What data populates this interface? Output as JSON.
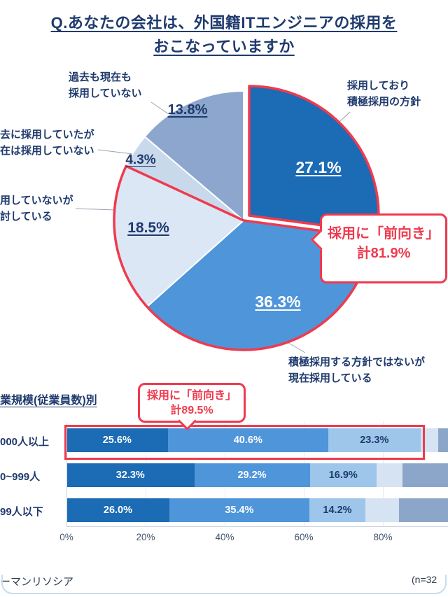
{
  "page": {
    "title_line1": "Q.あなたの会社は、外国籍ITエンジニアの採用を",
    "title_line2": "おこなっていますか",
    "footer_left": "ーマンリソシア",
    "footer_right": "(n=32"
  },
  "colors": {
    "navy": "#1f3a6d",
    "red": "#ef3a4e",
    "grid": "#e6ecf4"
  },
  "labels": {
    "pie_pcts": [
      "27.1%",
      "36.3%",
      "18.5%",
      "4.3%",
      "13.8%"
    ],
    "right_l1": "採用しており",
    "right_l2": "積極採用の方針",
    "topleft_l1": "過去も現在も",
    "topleft_l2": "採用していない",
    "left_l1": "去に採用していたが",
    "left_l2": "在は採用していない",
    "lowleft_l1": "用していないが",
    "lowleft_l2": "討している",
    "bottom_l1": "積極採用する方針ではないが",
    "bottom_l2": "現在採用している"
  },
  "callout_pie": {
    "line1": "採用に「前向き」",
    "line2": "計81.9%"
  },
  "callout_bar": {
    "line1": "採用に「前向き」",
    "line2": "計89.5%"
  },
  "bar_section": {
    "heading": "業規模(従業員数)別"
  },
  "chart_data": [
    {
      "type": "pie",
      "title": "Q.あなたの会社は、外国籍ITエンジニアの採用をおこなっていますか",
      "labels": [
        "採用しており積極採用の方針",
        "積極採用する方針ではないが現在採用している",
        "用していないが討している",
        "去に採用していたが在は採用していない",
        "過去も現在も採用していない"
      ],
      "values": [
        27.1,
        36.3,
        18.5,
        4.3,
        13.8
      ],
      "colors": [
        "#1b6bb5",
        "#4e95da",
        "#dbe7f5",
        "#c9d9ec",
        "#8ca6cd"
      ],
      "start_angle": "top",
      "direction": "clockwise",
      "annotation": "採用に「前向き」計81.9%"
    },
    {
      "type": "bar",
      "stacked": true,
      "subtitle": "業規模(従業員数)別",
      "categories": [
        "000人以上",
        "0~999人",
        "99人以下"
      ],
      "rows": [
        {
          "category": "000人以上",
          "values": [
            25.6,
            40.6,
            23.3,
            4.4,
            6.1
          ]
        },
        {
          "category": "0~999人",
          "values": [
            32.3,
            29.2,
            16.9,
            6.5,
            15.1
          ]
        },
        {
          "category": "99人以下",
          "values": [
            26.0,
            35.4,
            14.2,
            8.5,
            15.9
          ]
        }
      ],
      "labeled_segments": 3,
      "colors": [
        "#1b6bb5",
        "#4e95da",
        "#9ec5ea",
        "#d6e3f3",
        "#8ba6c9"
      ],
      "x_ticks": [
        "0%",
        "20%",
        "40%",
        "60%",
        "80%"
      ],
      "xlim": [
        0,
        100
      ],
      "annotation": "採用に「前向き」計89.5%"
    }
  ]
}
